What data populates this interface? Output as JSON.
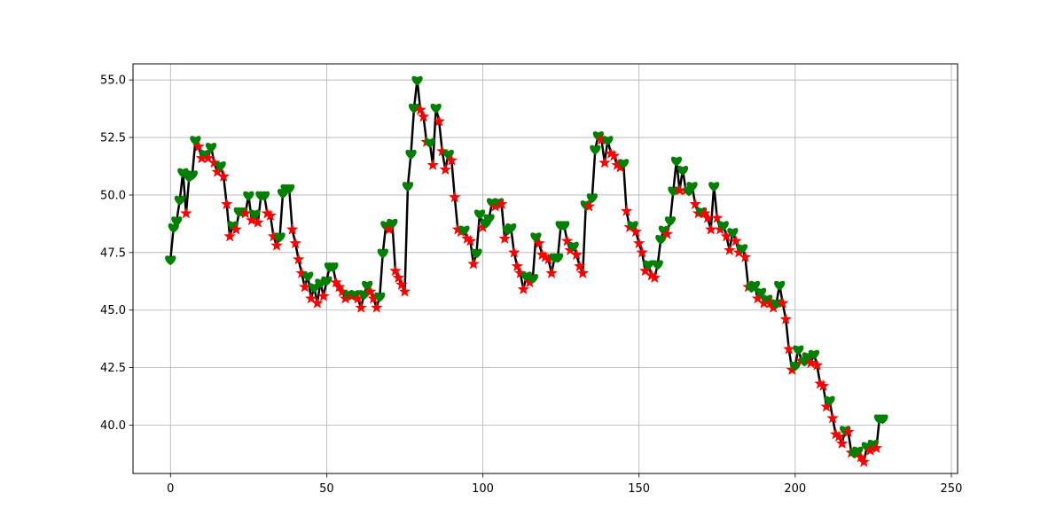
{
  "chart_data": {
    "type": "line",
    "title": "",
    "xlabel": "",
    "ylabel": "",
    "xlim": [
      -12,
      252
    ],
    "ylim": [
      37.9,
      55.7
    ],
    "xticks": [
      0,
      50,
      100,
      150,
      200,
      250
    ],
    "yticks": [
      40.0,
      42.5,
      45.0,
      47.5,
      50.0,
      52.5,
      55.0
    ],
    "xtick_labels": [
      "0",
      "50",
      "100",
      "150",
      "200",
      "250"
    ],
    "ytick_labels": [
      "40.0",
      "42.5",
      "45.0",
      "47.5",
      "50.0",
      "52.5",
      "55.0"
    ],
    "grid": true,
    "legend": "none",
    "line_color": "#000000",
    "up_marker": {
      "shape": "heart",
      "color": "#008000"
    },
    "down_marker": {
      "shape": "star",
      "color": "#ff0000"
    },
    "series": [
      {
        "x_start": 0,
        "values": [
          47.2,
          48.6,
          48.9,
          49.8,
          51.0,
          49.2,
          50.8,
          50.9,
          52.4,
          52.1,
          51.6,
          51.8,
          51.6,
          52.1,
          51.4,
          51.0,
          51.3,
          50.8,
          49.6,
          48.2,
          48.7,
          48.5,
          49.3,
          49.3,
          49.2,
          50.0,
          48.9,
          49.2,
          48.8,
          50.0,
          50.0,
          49.2,
          49.1,
          48.2,
          47.8,
          48.2,
          50.1,
          50.3,
          50.3,
          48.5,
          47.9,
          47.2,
          46.6,
          46.0,
          46.5,
          45.5,
          46.0,
          45.3,
          46.2,
          45.6,
          46.3,
          46.9,
          46.9,
          46.2,
          46.0,
          45.8,
          45.5,
          45.7,
          45.6,
          45.7,
          45.5,
          45.1,
          45.7,
          46.1,
          45.8,
          45.5,
          45.1,
          45.6,
          47.5,
          48.7,
          48.5,
          48.8,
          46.7,
          46.4,
          46.1,
          45.8,
          50.4,
          51.8,
          53.8,
          55.0,
          53.7,
          53.4,
          52.3,
          52.3,
          51.3,
          53.8,
          53.2,
          51.9,
          51.1,
          51.8,
          51.5,
          49.9,
          48.5,
          48.4,
          48.5,
          48.1,
          48.0,
          47.0,
          47.5,
          49.2,
          48.6,
          48.8,
          49.0,
          49.7,
          49.5,
          49.7,
          49.6,
          48.1,
          48.5,
          48.6,
          47.5,
          46.9,
          46.6,
          45.9,
          46.5,
          46.2,
          46.4,
          48.2,
          47.9,
          47.4,
          47.3,
          47.2,
          46.6,
          47.3,
          47.3,
          48.7,
          48.7,
          48.0,
          47.6,
          47.8,
          47.4,
          46.9,
          46.6,
          49.6,
          49.5,
          49.9,
          52.0,
          52.6,
          52.4,
          51.4,
          52.4,
          51.8,
          51.7,
          51.3,
          51.2,
          51.4,
          49.3,
          48.6,
          48.7,
          48.4,
          47.9,
          47.5,
          46.7,
          47.0,
          46.5,
          46.4,
          47.0,
          48.1,
          48.5,
          48.3,
          48.9,
          50.2,
          51.5,
          50.2,
          51.1,
          50.2,
          50.2,
          50.4,
          49.6,
          49.2,
          49.3,
          49.2,
          49.0,
          48.5,
          50.4,
          49.0,
          48.5,
          48.7,
          48.2,
          47.6,
          48.4,
          48.0,
          47.5,
          47.7,
          47.3,
          46.0,
          46.0,
          46.1,
          45.5,
          45.8,
          45.3,
          45.5,
          45.3,
          45.1,
          45.3,
          46.1,
          45.3,
          44.6,
          43.3,
          42.4,
          42.6,
          43.3,
          42.8,
          42.8,
          43.0,
          42.7,
          43.1,
          42.6,
          41.8,
          41.7,
          40.8,
          41.1,
          40.3,
          39.6,
          39.5,
          39.2,
          39.8,
          39.7,
          38.8,
          38.8,
          38.9,
          38.6,
          38.4,
          39.1,
          38.9,
          39.2,
          39.0,
          40.3,
          40.3
        ]
      }
    ]
  }
}
